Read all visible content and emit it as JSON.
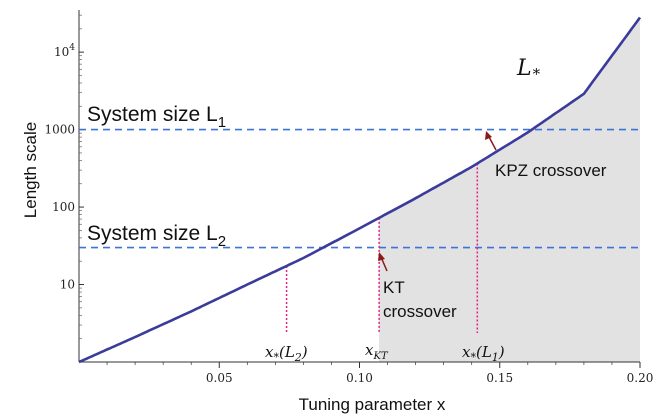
{
  "chart_data": {
    "type": "line",
    "xlabel": "Tuning parameter x",
    "ylabel": "Length scale",
    "x_ticks": [
      {
        "value": 0.05,
        "label": "0.05"
      },
      {
        "value": 0.1,
        "label": "0.10"
      },
      {
        "value": 0.15,
        "label": "0.15"
      },
      {
        "value": 0.2,
        "label": "0.20"
      }
    ],
    "y_scale": "log",
    "y_ticks": [
      {
        "value": 10,
        "label": "10"
      },
      {
        "value": 100,
        "label": "100"
      },
      {
        "value": 1000,
        "label": "1000"
      },
      {
        "value": 10000,
        "label": "10",
        "exponent": "4"
      }
    ],
    "xlim": [
      0,
      0.2
    ],
    "ylim": [
      1,
      35000
    ],
    "curve": {
      "label": "L",
      "label_sub": "*",
      "color": "#3b3b9a",
      "x": [
        0.0,
        0.02,
        0.04,
        0.06,
        0.08,
        0.1,
        0.12,
        0.14,
        0.16,
        0.18,
        0.2
      ],
      "y": [
        1,
        2.1,
        4.5,
        10,
        22,
        53,
        130,
        330,
        920,
        2900,
        28000
      ]
    },
    "horizontal_lines": [
      {
        "y": 1000,
        "label": "System size L",
        "label_sub": "1",
        "color": "#3b73d6"
      },
      {
        "y": 30,
        "label": "System size L",
        "label_sub": "2",
        "color": "#3b73d6"
      }
    ],
    "vertical_lines": [
      {
        "x": 0.074,
        "label": "x",
        "label_sub1": "*",
        "label_paren": "(L",
        "label_sub2": "2",
        "label_close": ")",
        "color": "#e0208a"
      },
      {
        "x": 0.107,
        "label": "x",
        "label_sub1": "KT",
        "color": "#e0208a"
      },
      {
        "x": 0.142,
        "label": "x",
        "label_sub1": "*",
        "label_paren": "(L",
        "label_sub2": "1",
        "label_close": ")",
        "color": "#e0208a"
      }
    ],
    "shaded_region": {
      "from_x": 0.107,
      "color": "#e2e2e2"
    },
    "annotations": [
      {
        "text": "KPZ crossover",
        "arrow_color": "#8b1a1a"
      },
      {
        "text_lines": [
          "KT",
          "crossover"
        ],
        "arrow_color": "#8b1a1a"
      }
    ]
  }
}
